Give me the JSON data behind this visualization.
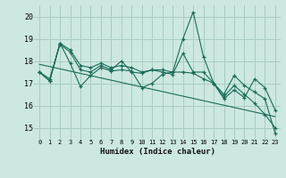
{
  "xlabel": "Humidex (Indice chaleur)",
  "bg_color": "#cce8e0",
  "grid_color": "#a8ccc4",
  "line_color": "#1a6b5a",
  "x": [
    0,
    1,
    2,
    3,
    4,
    5,
    6,
    7,
    8,
    9,
    10,
    11,
    12,
    13,
    14,
    15,
    16,
    17,
    18,
    19,
    20,
    21,
    22,
    23
  ],
  "series1": [
    17.5,
    17.1,
    18.8,
    17.9,
    16.85,
    17.35,
    17.7,
    17.55,
    17.6,
    17.55,
    16.8,
    17.0,
    17.4,
    17.5,
    19.0,
    20.2,
    18.2,
    17.0,
    16.5,
    17.35,
    16.9,
    16.6,
    16.3,
    14.75
  ],
  "series2": [
    17.5,
    17.2,
    18.75,
    18.4,
    17.6,
    17.5,
    17.8,
    17.6,
    18.0,
    17.5,
    17.45,
    17.6,
    17.5,
    17.4,
    18.35,
    17.5,
    17.5,
    17.0,
    16.4,
    16.9,
    16.5,
    16.1,
    15.6,
    15.0
  ],
  "series3": [
    17.5,
    17.1,
    18.8,
    18.5,
    17.8,
    17.7,
    17.9,
    17.7,
    17.8,
    17.7,
    17.5,
    17.6,
    17.6,
    17.5,
    17.5,
    17.45,
    17.2,
    17.0,
    16.3,
    16.7,
    16.35,
    17.2,
    16.8,
    15.8
  ],
  "trend_x": [
    0,
    23
  ],
  "trend_y": [
    17.85,
    15.5
  ],
  "ylim": [
    14.5,
    20.5
  ],
  "yticks": [
    15,
    16,
    17,
    18,
    19,
    20
  ],
  "xticks": [
    0,
    1,
    2,
    3,
    4,
    5,
    6,
    7,
    8,
    9,
    10,
    11,
    12,
    13,
    14,
    15,
    16,
    17,
    18,
    19,
    20,
    21,
    22,
    23
  ]
}
